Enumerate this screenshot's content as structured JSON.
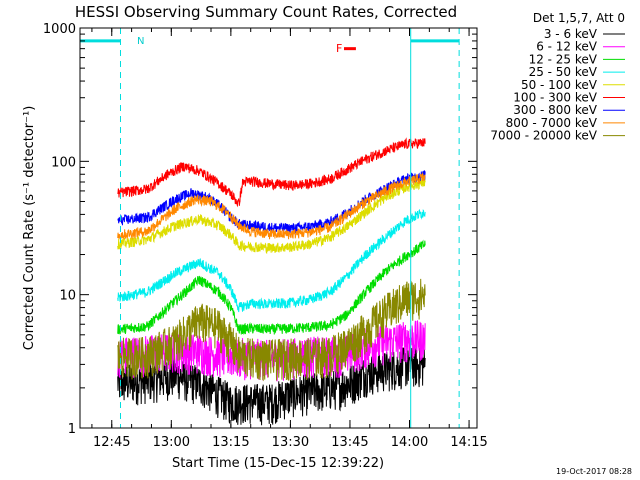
{
  "chart_data": {
    "type": "line",
    "title": "HESSI Observing Summary Count Rates, Corrected",
    "xlabel": "Start Time (15-Dec-15 12:39:22)",
    "ylabel": "Corrected Count Rate (s⁻¹ detector⁻¹)",
    "yscale": "log",
    "ylim": [
      1,
      1000
    ],
    "xlim_minutes": [
      -2,
      98
    ],
    "xticks": [
      {
        "t": 6,
        "label": "12:45"
      },
      {
        "t": 21,
        "label": "13:00"
      },
      {
        "t": 36,
        "label": "13:15"
      },
      {
        "t": 51,
        "label": "13:30"
      },
      {
        "t": 66,
        "label": "13:45"
      },
      {
        "t": 81,
        "label": "14:00"
      },
      {
        "t": 96,
        "label": "14:15"
      }
    ],
    "yticks": [
      {
        "v": 1,
        "label": "1"
      },
      {
        "v": 10,
        "label": "10"
      },
      {
        "v": 100,
        "label": "100"
      },
      {
        "v": 1000,
        "label": "1000"
      }
    ],
    "legend_title": "Det 1,5,7, Att 0",
    "legend_position": "right",
    "series": [
      {
        "name": "3 - 6 keV",
        "color": "#000000",
        "points": [
          [
            7.5,
            2.2
          ],
          [
            15,
            2.3
          ],
          [
            22,
            2.5
          ],
          [
            28,
            2.2
          ],
          [
            33,
            1.8
          ],
          [
            36,
            1.6
          ],
          [
            41,
            1.6
          ],
          [
            46,
            1.6
          ],
          [
            51,
            1.8
          ],
          [
            56,
            1.9
          ],
          [
            61,
            2.0
          ],
          [
            66,
            2.2
          ],
          [
            70,
            2.6
          ],
          [
            75,
            2.8
          ],
          [
            80,
            3.0
          ],
          [
            85,
            3.0
          ]
        ]
      },
      {
        "name": "6 - 12 keV",
        "color": "#ff00ff",
        "points": [
          [
            7.5,
            3.6
          ],
          [
            15,
            3.7
          ],
          [
            22,
            3.9
          ],
          [
            28,
            3.8
          ],
          [
            33,
            3.6
          ],
          [
            36,
            3.5
          ],
          [
            41,
            3.5
          ],
          [
            46,
            3.4
          ],
          [
            51,
            3.5
          ],
          [
            56,
            3.6
          ],
          [
            61,
            3.6
          ],
          [
            65,
            3.7
          ],
          [
            67,
            3.9
          ],
          [
            70,
            4.2
          ],
          [
            75,
            4.5
          ],
          [
            80,
            4.7
          ],
          [
            85,
            4.8
          ]
        ]
      },
      {
        "name": "12 - 25 keV",
        "color": "#00dd00",
        "points": [
          [
            7.5,
            5.5
          ],
          [
            15,
            5.8
          ],
          [
            22,
            9.0
          ],
          [
            28,
            13.0
          ],
          [
            33,
            10.5
          ],
          [
            36,
            8.0
          ],
          [
            38,
            5.5
          ],
          [
            41,
            5.6
          ],
          [
            46,
            5.5
          ],
          [
            51,
            5.6
          ],
          [
            56,
            5.7
          ],
          [
            61,
            5.9
          ],
          [
            65,
            7.0
          ],
          [
            70,
            10.5
          ],
          [
            75,
            15.0
          ],
          [
            80,
            19.5
          ],
          [
            85,
            24.0
          ]
        ]
      },
      {
        "name": "25 - 50 keV",
        "color": "#00eeee",
        "points": [
          [
            7.5,
            9.5
          ],
          [
            15,
            10.5
          ],
          [
            22,
            14.5
          ],
          [
            28,
            17.5
          ],
          [
            33,
            14.5
          ],
          [
            36,
            11.0
          ],
          [
            38,
            8.0
          ],
          [
            41,
            8.6
          ],
          [
            46,
            8.5
          ],
          [
            51,
            8.7
          ],
          [
            56,
            9.2
          ],
          [
            61,
            10.5
          ],
          [
            65,
            13.5
          ],
          [
            70,
            20.0
          ],
          [
            75,
            27.0
          ],
          [
            80,
            36.0
          ],
          [
            85,
            42.0
          ]
        ]
      },
      {
        "name": "50 - 100 keV",
        "color": "#dddd00",
        "points": [
          [
            7.5,
            24
          ],
          [
            15,
            26
          ],
          [
            22,
            33
          ],
          [
            28,
            37
          ],
          [
            33,
            33
          ],
          [
            36,
            28
          ],
          [
            38,
            23.5
          ],
          [
            41,
            23
          ],
          [
            46,
            22.5
          ],
          [
            51,
            22.8
          ],
          [
            56,
            24
          ],
          [
            61,
            27
          ],
          [
            65,
            32
          ],
          [
            70,
            42
          ],
          [
            75,
            54
          ],
          [
            80,
            64
          ],
          [
            85,
            70
          ]
        ]
      },
      {
        "name": "100 - 300 keV",
        "color": "#ff0000",
        "points": [
          [
            7.5,
            58
          ],
          [
            15,
            62
          ],
          [
            20,
            80
          ],
          [
            24,
            92
          ],
          [
            28,
            85
          ],
          [
            33,
            68
          ],
          [
            36,
            57
          ],
          [
            38,
            48
          ],
          [
            39,
            70
          ],
          [
            41,
            71
          ],
          [
            46,
            68
          ],
          [
            51,
            66
          ],
          [
            56,
            68
          ],
          [
            61,
            74
          ],
          [
            65,
            86
          ],
          [
            70,
            104
          ],
          [
            75,
            120
          ],
          [
            80,
            135
          ],
          [
            85,
            138
          ]
        ]
      },
      {
        "name": "300 - 800 keV",
        "color": "#0000ff",
        "points": [
          [
            7.5,
            36
          ],
          [
            15,
            38
          ],
          [
            22,
            52
          ],
          [
            26,
            58
          ],
          [
            30,
            54
          ],
          [
            33,
            47
          ],
          [
            36,
            38
          ],
          [
            38,
            34
          ],
          [
            41,
            33
          ],
          [
            46,
            32
          ],
          [
            51,
            31.5
          ],
          [
            56,
            32.5
          ],
          [
            61,
            35
          ],
          [
            65,
            41
          ],
          [
            70,
            52
          ],
          [
            75,
            63
          ],
          [
            80,
            74
          ],
          [
            85,
            79
          ]
        ]
      },
      {
        "name": "800 - 7000 keV",
        "color": "#ff8800",
        "points": [
          [
            7.5,
            28
          ],
          [
            15,
            30
          ],
          [
            22,
            44
          ],
          [
            27,
            52
          ],
          [
            31,
            50
          ],
          [
            35,
            42
          ],
          [
            38,
            33
          ],
          [
            41,
            30
          ],
          [
            46,
            28.5
          ],
          [
            51,
            28.5
          ],
          [
            56,
            29.5
          ],
          [
            61,
            32
          ],
          [
            65,
            39
          ],
          [
            70,
            50
          ],
          [
            75,
            60
          ],
          [
            80,
            70
          ],
          [
            85,
            76
          ]
        ]
      },
      {
        "name": "7000 - 20000 keV",
        "color": "#888800",
        "points": [
          [
            7.5,
            3.5
          ],
          [
            15,
            3.6
          ],
          [
            22,
            4.5
          ],
          [
            28,
            6.5
          ],
          [
            33,
            5.8
          ],
          [
            36,
            4.5
          ],
          [
            38,
            3.6
          ],
          [
            41,
            3.5
          ],
          [
            46,
            3.4
          ],
          [
            51,
            3.5
          ],
          [
            56,
            3.5
          ],
          [
            61,
            3.6
          ],
          [
            65,
            4.2
          ],
          [
            70,
            5.5
          ],
          [
            75,
            7.5
          ],
          [
            80,
            9.5
          ],
          [
            85,
            10.0
          ]
        ]
      }
    ],
    "annotations": {
      "night_label": "N",
      "flare_label": "F",
      "night_intervals": [
        [
          -2,
          8.2
        ],
        [
          81.3,
          93.5
        ]
      ],
      "night_level": 800,
      "flare_marker": {
        "t": [
          64.5,
          67.5
        ],
        "value": 700
      }
    },
    "footer_date": "19-Oct-2017 08:28"
  }
}
